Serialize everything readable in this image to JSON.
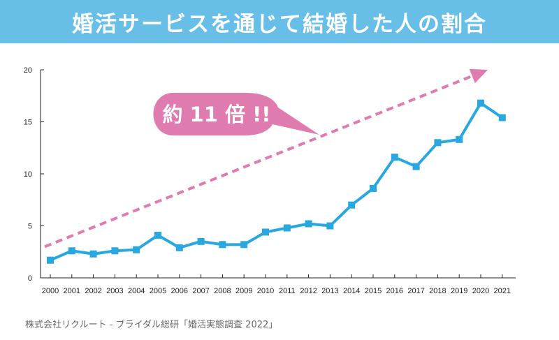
{
  "banner": {
    "title": "婚活サービスを通じて結婚した人の割合"
  },
  "callout": {
    "text": "約 11 倍 !!"
  },
  "source": {
    "text": "株式会社リクルート - ブライダル総研「婚活実態調査 2022」"
  },
  "colors": {
    "banner": "#67bfe8",
    "line": "#28a7e1",
    "arrow": "#e07bb0",
    "callout": "#e07bb0"
  },
  "chart_data": {
    "type": "line",
    "title": "婚活サービスを通じて結婚した人の割合",
    "xlabel": "",
    "ylabel": "",
    "x": [
      "2000",
      "2001",
      "2002",
      "2003",
      "2004",
      "2005",
      "2006",
      "2007",
      "2008",
      "2009",
      "2010",
      "2011",
      "2012",
      "2013",
      "2014",
      "2015",
      "2016",
      "2017",
      "2018",
      "2019",
      "2020",
      "2021"
    ],
    "series": [
      {
        "values": [
          1.7,
          2.6,
          2.3,
          2.6,
          2.7,
          4.1,
          2.9,
          3.5,
          3.2,
          3.2,
          4.4,
          4.8,
          5.2,
          5.0,
          7.0,
          8.6,
          11.6,
          10.7,
          13.0,
          13.3,
          16.8,
          15.4
        ]
      }
    ],
    "ylim": [
      0,
      20
    ],
    "yticks": [
      0,
      5,
      10,
      15,
      20
    ],
    "trend_arrow": {
      "from": [
        "2000",
        3.0
      ],
      "to": [
        "2020",
        20.0
      ]
    },
    "grid": false,
    "legend": "none"
  }
}
